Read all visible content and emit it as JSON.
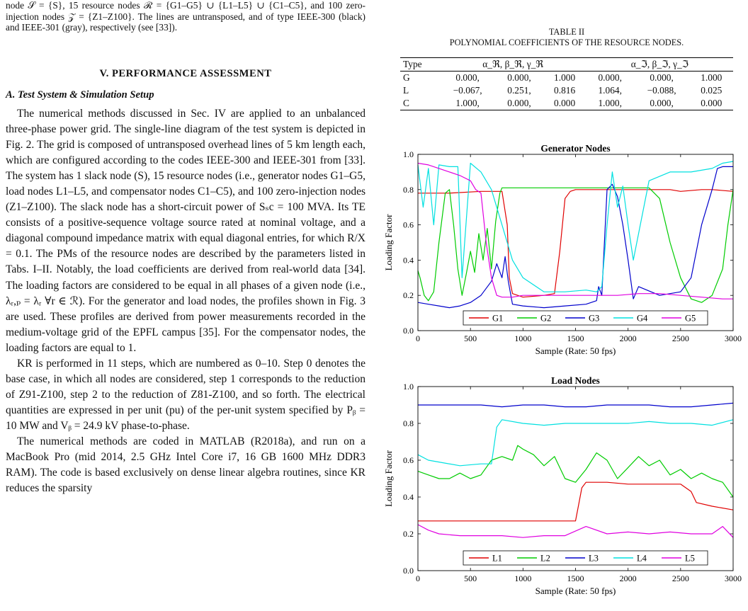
{
  "top_caption": "node 𝒮 = {S}, 15 resource nodes ℛ = {G1–G5} ∪ {L1–L5} ∪ {C1–C5}, and 100 zero-injection nodes 𝒵 = {Z1–Z100}. The lines are untransposed, and of type IEEE-300 (black) and IEEE-301 (gray), respectively (see [33]).",
  "section_title": "V. PERFORMANCE ASSESSMENT",
  "subsection_title": "A. Test System & Simulation Setup",
  "paragraphs": [
    "The numerical methods discussed in Sec. IV are applied to an unbalanced three-phase power grid. The single-line diagram of the test system is depicted in Fig. 2. The grid is composed of untransposed overhead lines of 5 km length each, which are configured according to the codes IEEE-300 and IEEE-301 from [33]. The system has 1 slack node (S), 15 resource nodes (i.e., generator nodes G1–G5, load nodes L1–L5, and compensator nodes C1–C5), and 100 zero-injection nodes (Z1–Z100). The slack node has a short-circuit power of Sₛc = 100 MVA. Its TE consists of a positive-sequence voltage source rated at nominal voltage, and a diagonal compound impedance matrix with equal diagonal entries, for which R/X = 0.1. The PMs of the resource nodes are described by the parameters listed in Tabs. I–II. Notably, the load coefficients are derived from real-world data [34]. The loading factors are considered to be equal in all phases of a given node (i.e., λᵣ,ₚ = λᵣ ∀r ∈ ℛ). For the generator and load nodes, the profiles shown in Fig. 3 are used. These profiles are derived from power measurements recorded in the medium-voltage grid of the EPFL campus [35]. For the compensator nodes, the loading factors are equal to 1.",
    "KR is performed in 11 steps, which are numbered as 0–10. Step 0 denotes the base case, in which all nodes are considered, step 1 corresponds to the reduction of Z91-Z100, step 2 to the reduction of Z81-Z100, and so forth. The electrical quantities are expressed in per unit (pu) of the per-unit system specified by Pᵦ = 10 MW and Vᵦ = 24.9 kV phase-to-phase.",
    "The numerical methods are coded in MATLAB (R2018a), and run on a MacBook Pro (mid 2014, 2.5 GHz Intel Core i7, 16 GB 1600 MHz DDR3 RAM). The code is based exclusively on dense linear algebra routines, since KR reduces the sparsity"
  ],
  "table": {
    "label": "TABLE II",
    "title": "POLYNOMIAL COEFFICIENTS OF THE RESOURCE NODES.",
    "headers": [
      "Type",
      "α_ℜ, β_ℜ, γ_ℜ",
      "α_ℑ, β_ℑ, γ_ℑ"
    ],
    "rows": [
      {
        "type": "G",
        "re": [
          "0.000,",
          "0.000,",
          "1.000"
        ],
        "im": [
          "0.000,",
          "0.000,",
          "1.000"
        ]
      },
      {
        "type": "L",
        "re": [
          "−0.067,",
          "0.251,",
          "0.816"
        ],
        "im": [
          "1.064,",
          "−0.088,",
          "0.025"
        ]
      },
      {
        "type": "C",
        "re": [
          "1.000,",
          "0.000,",
          "0.000"
        ],
        "im": [
          "1.000,",
          "0.000,",
          "0.000"
        ]
      }
    ]
  },
  "chart_data": [
    {
      "type": "line",
      "title": "Generator Nodes",
      "xlabel": "Sample (Rate: 50 fps)",
      "ylabel": "Loading Factor",
      "xlim": [
        0,
        3000
      ],
      "ylim": [
        0,
        1
      ],
      "xticks": [
        "0",
        "500",
        "1000",
        "1500",
        "2000",
        "2500",
        "3000"
      ],
      "yticks": [
        "0.0",
        "0.2",
        "0.4",
        "0.6",
        "0.8",
        "1.0"
      ],
      "legend_position": "bottom-center",
      "series": [
        {
          "name": "G1",
          "color": "#e00000",
          "x": [
            0,
            300,
            600,
            800,
            850,
            870,
            900,
            950,
            1000,
            1200,
            1300,
            1350,
            1400,
            1450,
            1500,
            1700,
            1800,
            2000,
            2200,
            2400,
            2500,
            2700,
            2800,
            3000
          ],
          "y": [
            0.78,
            0.78,
            0.79,
            0.79,
            0.6,
            0.3,
            0.21,
            0.2,
            0.19,
            0.2,
            0.21,
            0.45,
            0.75,
            0.79,
            0.8,
            0.8,
            0.8,
            0.8,
            0.8,
            0.8,
            0.79,
            0.8,
            0.8,
            0.79
          ]
        },
        {
          "name": "G2",
          "color": "#00cc00",
          "x": [
            0,
            20,
            60,
            100,
            150,
            200,
            260,
            300,
            340,
            380,
            420,
            460,
            500,
            540,
            580,
            620,
            660,
            700,
            740,
            780,
            800,
            1000,
            1500,
            1800,
            2000,
            2200,
            2300,
            2400,
            2500,
            2600,
            2700,
            2800,
            2900,
            2950,
            3000
          ],
          "y": [
            0.34,
            0.3,
            0.2,
            0.17,
            0.22,
            0.5,
            0.78,
            0.8,
            0.6,
            0.35,
            0.2,
            0.32,
            0.45,
            0.33,
            0.55,
            0.4,
            0.58,
            0.35,
            0.62,
            0.78,
            0.81,
            0.81,
            0.81,
            0.81,
            0.81,
            0.81,
            0.75,
            0.5,
            0.3,
            0.18,
            0.16,
            0.2,
            0.35,
            0.6,
            0.8
          ]
        },
        {
          "name": "G3",
          "color": "#0000cc",
          "x": [
            0,
            100,
            200,
            300,
            400,
            500,
            600,
            700,
            750,
            800,
            830,
            860,
            900,
            1000,
            1200,
            1400,
            1600,
            1700,
            1720,
            1750,
            1800,
            1850,
            1900,
            1950,
            2000,
            2050,
            2100,
            2300,
            2500,
            2600,
            2700,
            2800,
            2850,
            2900,
            3000
          ],
          "y": [
            0.16,
            0.15,
            0.14,
            0.13,
            0.14,
            0.16,
            0.2,
            0.28,
            0.38,
            0.3,
            0.42,
            0.28,
            0.15,
            0.14,
            0.13,
            0.14,
            0.15,
            0.17,
            0.25,
            0.2,
            0.8,
            0.83,
            0.76,
            0.6,
            0.4,
            0.18,
            0.25,
            0.2,
            0.22,
            0.3,
            0.6,
            0.8,
            0.92,
            0.93,
            0.93
          ]
        },
        {
          "name": "G4",
          "color": "#00e0e0",
          "x": [
            0,
            50,
            100,
            150,
            200,
            300,
            380,
            420,
            500,
            600,
            700,
            800,
            900,
            1000,
            1200,
            1400,
            1600,
            1700,
            1750,
            1800,
            1850,
            1900,
            1950,
            2000,
            2050,
            2100,
            2200,
            2400,
            2600,
            2800,
            2900,
            3000
          ],
          "y": [
            0.94,
            0.7,
            0.92,
            0.6,
            0.94,
            0.93,
            0.93,
            0.3,
            0.95,
            0.9,
            0.8,
            0.6,
            0.4,
            0.3,
            0.22,
            0.22,
            0.23,
            0.22,
            0.25,
            0.6,
            0.9,
            0.7,
            0.82,
            0.6,
            0.4,
            0.55,
            0.85,
            0.9,
            0.9,
            0.92,
            0.95,
            0.96
          ]
        },
        {
          "name": "G5",
          "color": "#e000e0",
          "x": [
            0,
            100,
            200,
            300,
            400,
            500,
            550,
            600,
            650,
            700,
            750,
            800,
            900,
            1000,
            1200,
            1500,
            1700,
            1900,
            2100,
            2300,
            2500,
            2700,
            2900,
            3000
          ],
          "y": [
            0.95,
            0.94,
            0.92,
            0.9,
            0.88,
            0.85,
            0.8,
            0.78,
            0.5,
            0.3,
            0.2,
            0.19,
            0.19,
            0.2,
            0.2,
            0.2,
            0.2,
            0.2,
            0.21,
            0.21,
            0.2,
            0.19,
            0.18,
            0.18
          ]
        }
      ]
    },
    {
      "type": "line",
      "title": "Load Nodes",
      "xlabel": "Sample (Rate: 50 fps)",
      "ylabel": "Loading Factor",
      "xlim": [
        0,
        3000
      ],
      "ylim": [
        0,
        1
      ],
      "xticks": [
        "0",
        "500",
        "1000",
        "1500",
        "2000",
        "2500",
        "3000"
      ],
      "yticks": [
        "0.0",
        "0.2",
        "0.4",
        "0.6",
        "0.8",
        "1.0"
      ],
      "legend_position": "bottom-center",
      "series": [
        {
          "name": "L1",
          "color": "#e00000",
          "x": [
            0,
            200,
            400,
            600,
            800,
            1000,
            1200,
            1400,
            1500,
            1530,
            1560,
            1600,
            1800,
            2000,
            2200,
            2400,
            2500,
            2600,
            2650,
            2800,
            3000
          ],
          "y": [
            0.27,
            0.27,
            0.27,
            0.27,
            0.27,
            0.27,
            0.27,
            0.27,
            0.27,
            0.36,
            0.45,
            0.48,
            0.48,
            0.47,
            0.47,
            0.47,
            0.47,
            0.43,
            0.37,
            0.35,
            0.33
          ]
        },
        {
          "name": "L2",
          "color": "#00cc00",
          "x": [
            0,
            100,
            200,
            300,
            400,
            500,
            600,
            700,
            800,
            900,
            950,
            1000,
            1100,
            1200,
            1300,
            1400,
            1500,
            1600,
            1700,
            1800,
            1900,
            2000,
            2100,
            2200,
            2300,
            2400,
            2500,
            2600,
            2700,
            2800,
            2900,
            3000
          ],
          "y": [
            0.54,
            0.52,
            0.5,
            0.5,
            0.53,
            0.5,
            0.52,
            0.6,
            0.62,
            0.6,
            0.68,
            0.66,
            0.63,
            0.57,
            0.62,
            0.5,
            0.48,
            0.55,
            0.64,
            0.6,
            0.5,
            0.56,
            0.62,
            0.57,
            0.6,
            0.52,
            0.55,
            0.5,
            0.53,
            0.5,
            0.48,
            0.4
          ]
        },
        {
          "name": "L3",
          "color": "#0000cc",
          "x": [
            0,
            200,
            400,
            600,
            800,
            1000,
            1200,
            1400,
            1600,
            1800,
            2000,
            2200,
            2400,
            2600,
            2800,
            3000
          ],
          "y": [
            0.9,
            0.9,
            0.9,
            0.9,
            0.89,
            0.9,
            0.9,
            0.89,
            0.89,
            0.9,
            0.9,
            0.9,
            0.89,
            0.89,
            0.9,
            0.91
          ]
        },
        {
          "name": "L4",
          "color": "#00e0e0",
          "x": [
            0,
            100,
            200,
            400,
            600,
            700,
            750,
            800,
            1000,
            1200,
            1400,
            1600,
            1800,
            2000,
            2200,
            2400,
            2600,
            2800,
            3000
          ],
          "y": [
            0.63,
            0.6,
            0.59,
            0.57,
            0.58,
            0.58,
            0.78,
            0.82,
            0.8,
            0.79,
            0.8,
            0.8,
            0.8,
            0.8,
            0.81,
            0.8,
            0.8,
            0.79,
            0.82
          ]
        },
        {
          "name": "L5",
          "color": "#e000e0",
          "x": [
            0,
            100,
            200,
            400,
            600,
            800,
            1000,
            1200,
            1400,
            1600,
            1800,
            2000,
            2200,
            2400,
            2600,
            2800,
            2900,
            3000
          ],
          "y": [
            0.25,
            0.22,
            0.2,
            0.19,
            0.19,
            0.19,
            0.18,
            0.19,
            0.19,
            0.24,
            0.2,
            0.21,
            0.2,
            0.21,
            0.2,
            0.2,
            0.24,
            0.18
          ]
        }
      ]
    }
  ]
}
